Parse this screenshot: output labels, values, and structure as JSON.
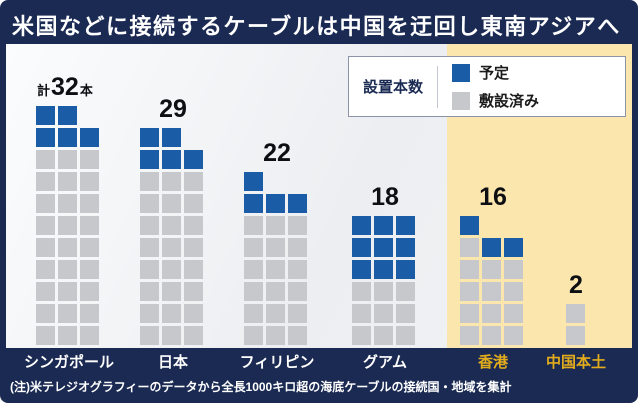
{
  "title": "米国などに接続するケーブルは中国を迂回し東南アジアへ",
  "note": "(注)米テレジオグラフィーのデータから全長1000キロ超の海底ケーブルの接続国・地域を集計",
  "legend": {
    "title": "設置本数",
    "planned_label": "予定",
    "laid_label": "敷設済み"
  },
  "colors": {
    "navy": "#1a2a52",
    "planned_blue": "#1b5ca6",
    "laid_gray": "#c6c8cb",
    "highlight_band": "#fbe7ae",
    "gold": "#e3ac1c"
  },
  "chart_data": {
    "type": "bar",
    "subtype": "waffle-stacked-unit-chart",
    "title": "米国などに接続するケーブルは中国を迂回し東南アジアへ",
    "unit": "本",
    "categories": [
      "シンガポール",
      "日本",
      "フィリピン",
      "グアム",
      "香港",
      "中国本土"
    ],
    "totals": [
      32,
      29,
      22,
      18,
      16,
      2
    ],
    "series": [
      {
        "name": "予定",
        "values": [
          5,
          5,
          4,
          9,
          3,
          0
        ]
      },
      {
        "name": "敷設済み",
        "values": [
          27,
          24,
          18,
          9,
          13,
          2
        ]
      }
    ],
    "total_label_prefix": "計",
    "total_label_suffix": "本",
    "legend_position": "top-right",
    "highlighted_categories": [
      "香港",
      "中国本土"
    ],
    "note": "(注)米テレジオグラフィーのデータから全長1000キロ超の海底ケーブルの接続国・地域を集計"
  },
  "columns": [
    {
      "id": "singapore",
      "grid_columns": 3,
      "count_prefix": "計",
      "count_suffix": "本",
      "highlighted": false
    },
    {
      "id": "japan",
      "grid_columns": 3,
      "highlighted": false
    },
    {
      "id": "philippines",
      "grid_columns": 3,
      "highlighted": false
    },
    {
      "id": "guam",
      "grid_columns": 3,
      "highlighted": false
    },
    {
      "id": "hong-kong",
      "grid_columns": 3,
      "highlighted": true
    },
    {
      "id": "china",
      "grid_columns": 1,
      "highlighted": true
    }
  ]
}
